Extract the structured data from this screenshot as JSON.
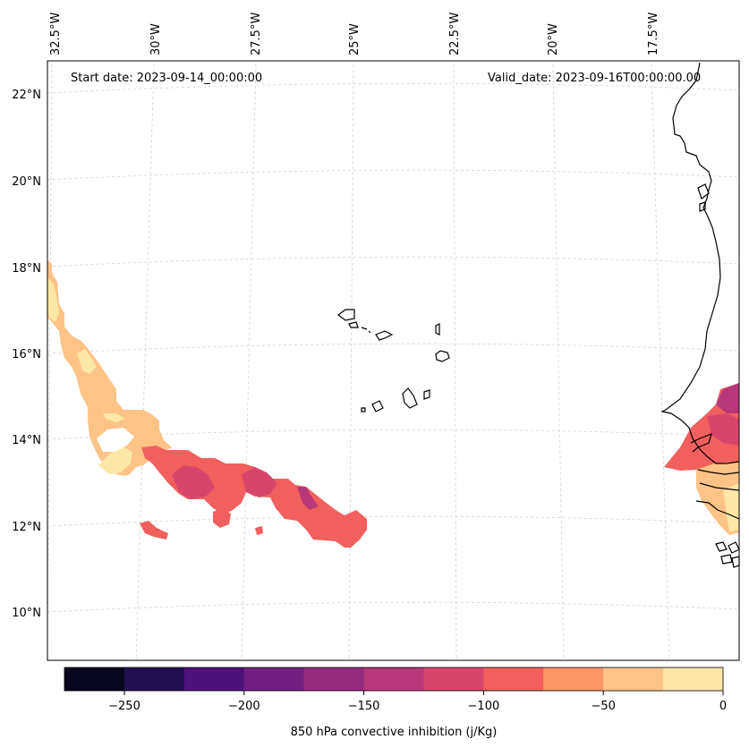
{
  "header": {
    "start_date": "Start date: 2023-09-14_00:00:00",
    "valid_date": "Valid_date: 2023-09-16T00:00:00.00"
  },
  "longitude_labels": [
    "32.5°W",
    "30°W",
    "27.5°W",
    "25°W",
    "22.5°W",
    "20°W",
    "17.5°W"
  ],
  "latitude_labels": [
    "22°N",
    "20°N",
    "18°N",
    "16°N",
    "14°N",
    "12°N",
    "10°N"
  ],
  "colorbar": {
    "label": "850 hPa convective inhibition (j/Kg)",
    "tick_labels": [
      "−250",
      "−200",
      "−150",
      "−100",
      "−50",
      "0"
    ],
    "range": [
      -275,
      0
    ],
    "bins": [
      {
        "from": -275,
        "to": -250,
        "color": "#07061c"
      },
      {
        "from": -250,
        "to": -225,
        "color": "#221150"
      },
      {
        "from": -225,
        "to": -200,
        "color": "#4f127b"
      },
      {
        "from": -200,
        "to": -175,
        "color": "#721f81"
      },
      {
        "from": -175,
        "to": -150,
        "color": "#952c80"
      },
      {
        "from": -150,
        "to": -125,
        "color": "#b73779"
      },
      {
        "from": -125,
        "to": -100,
        "color": "#d8456c"
      },
      {
        "from": -100,
        "to": -75,
        "color": "#f1605d"
      },
      {
        "from": -75,
        "to": -50,
        "color": "#fd9567"
      },
      {
        "from": -50,
        "to": -25,
        "color": "#fec387"
      },
      {
        "from": -25,
        "to": 0,
        "color": "#fde7a6"
      }
    ]
  },
  "colors": {
    "light_yellow": "#fde7a6",
    "light_orange": "#fec387",
    "salmon": "#f1605d",
    "pink_red": "#d8456c",
    "magenta": "#b73779",
    "coast": "#000000",
    "grid": "#d3d3d3"
  }
}
